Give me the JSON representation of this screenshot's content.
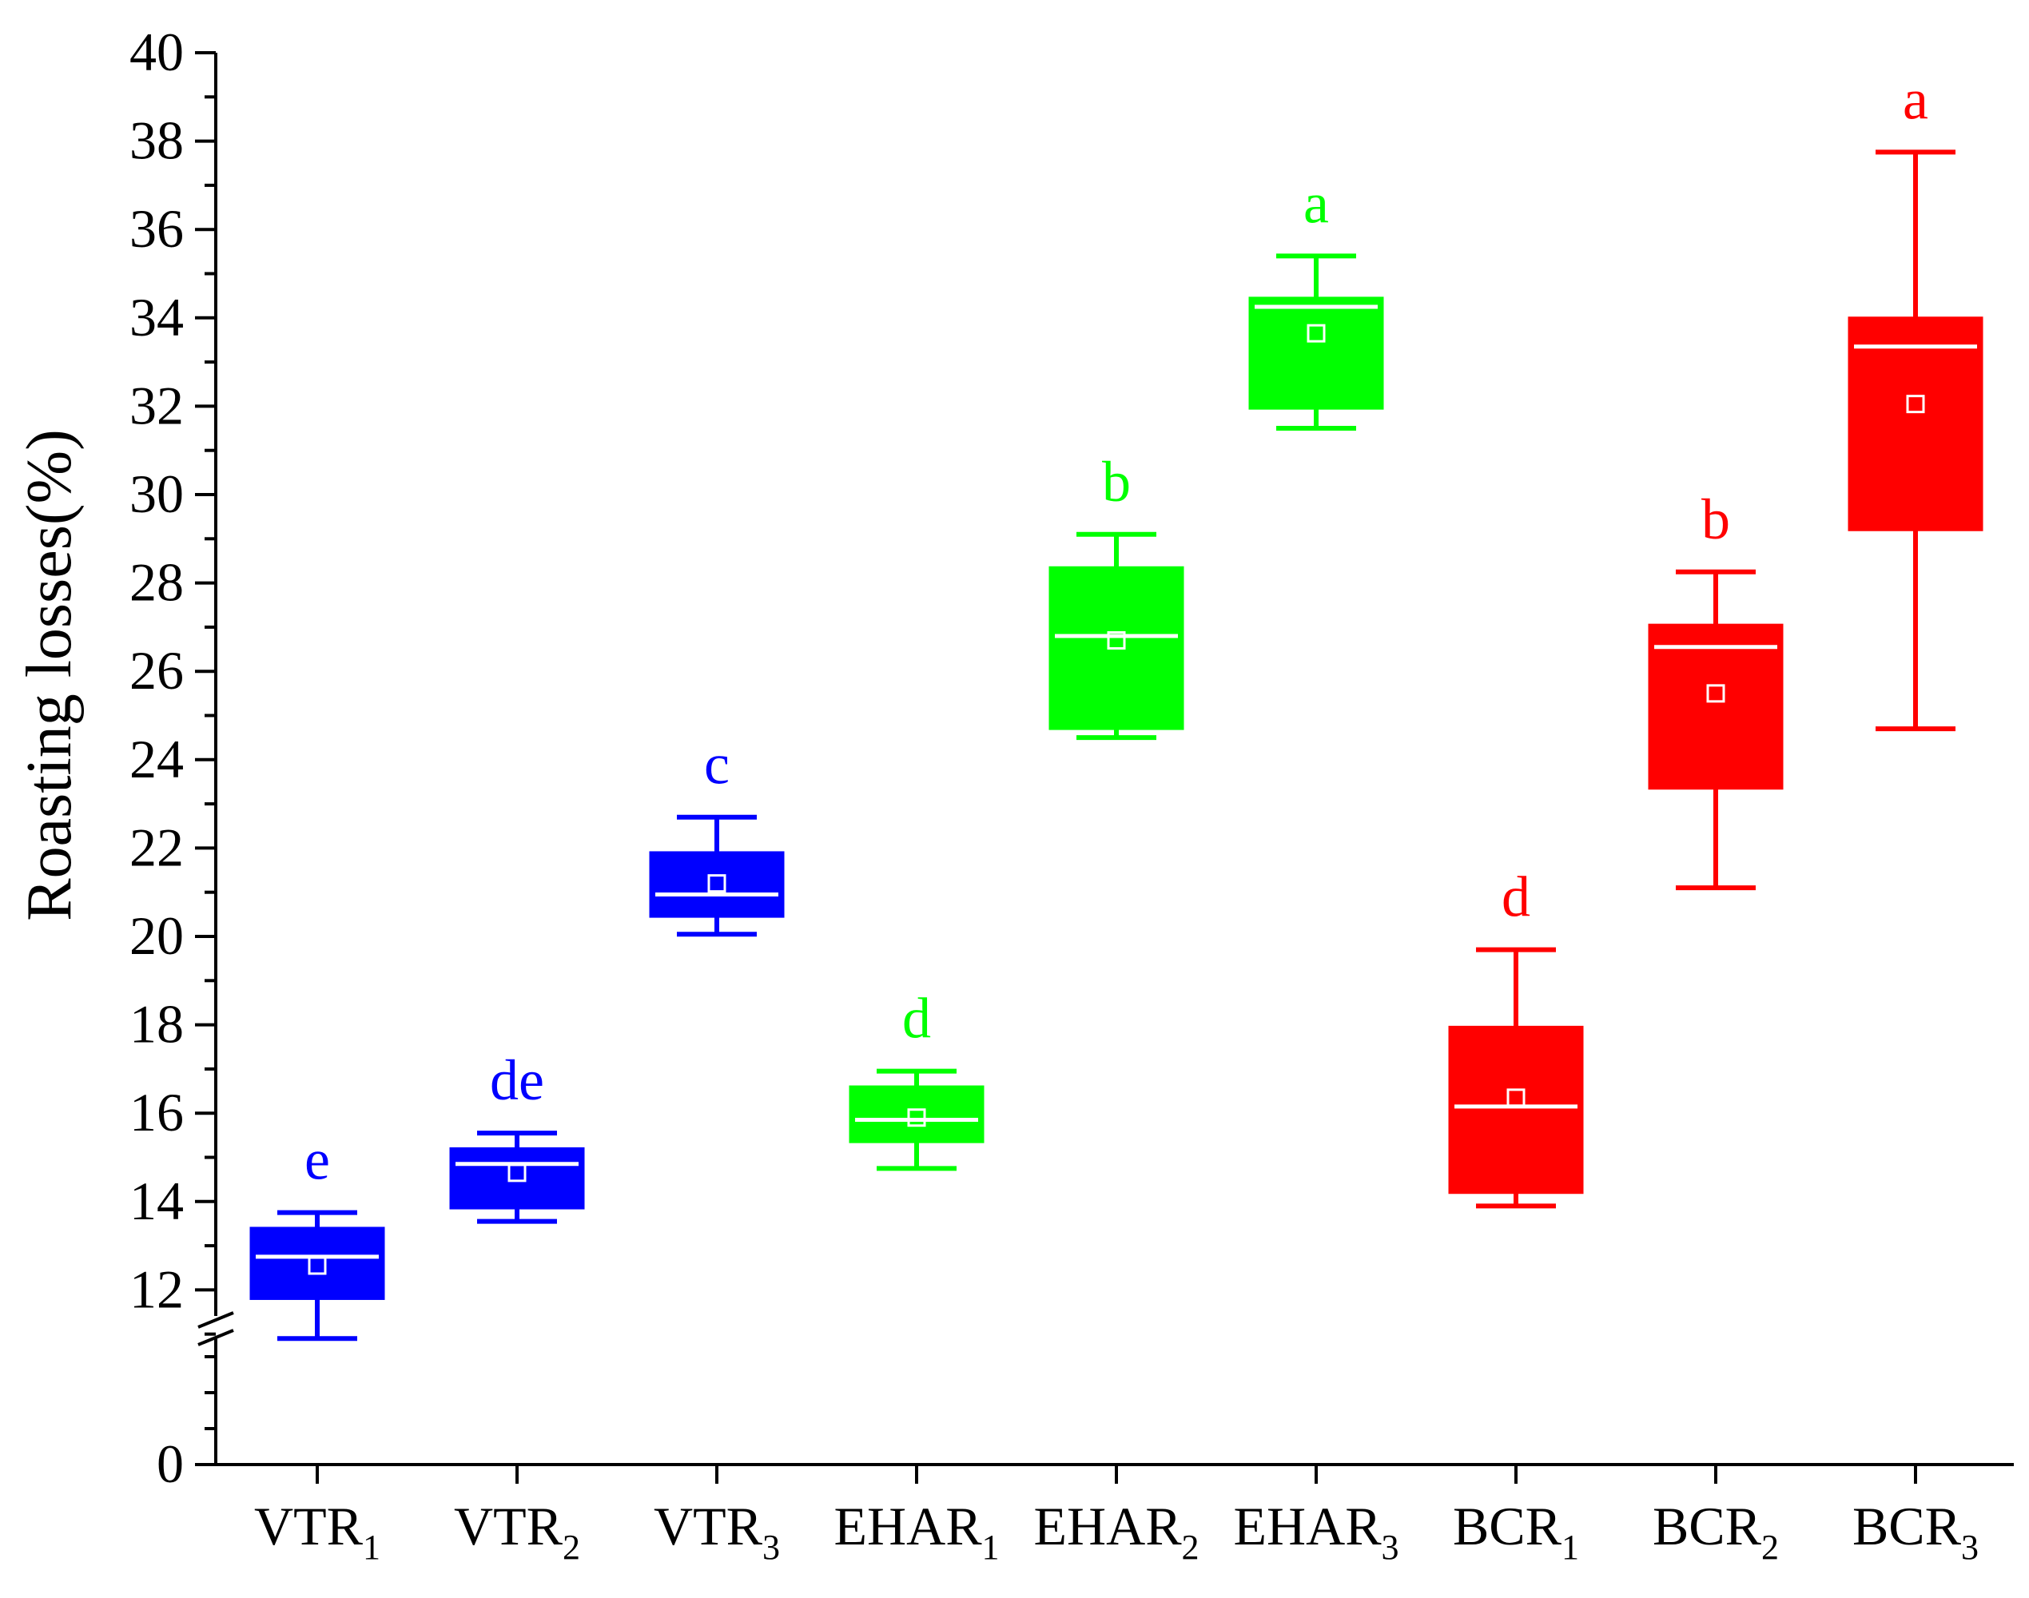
{
  "chart_data": {
    "type": "box",
    "ylabel": "Roasting losses(%)",
    "y_ticks": [
      "0",
      "12",
      "14",
      "16",
      "18",
      "20",
      "22",
      "24",
      "26",
      "28",
      "30",
      "32",
      "34",
      "36",
      "38",
      "40"
    ],
    "y_axis_break": [
      10.3,
      10.9
    ],
    "ylim": [
      0,
      40
    ],
    "colors": {
      "blue": "#0000ff",
      "green": "#00ff00",
      "red": "#ff0000"
    },
    "boxes": [
      {
        "label": "VTR",
        "sub": "1",
        "color": "blue",
        "whisker_low": 10.9,
        "q1": 11.8,
        "median": 12.75,
        "q3": 13.4,
        "whisker_high": 13.75,
        "mean": 12.55,
        "group_letter": "e"
      },
      {
        "label": "VTR",
        "sub": "2",
        "color": "blue",
        "whisker_low": 13.55,
        "q1": 13.85,
        "median": 14.85,
        "q3": 15.2,
        "whisker_high": 15.55,
        "mean": 14.65,
        "group_letter": "de"
      },
      {
        "label": "VTR",
        "sub": "3",
        "color": "blue",
        "whisker_low": 20.05,
        "q1": 20.45,
        "median": 20.95,
        "q3": 21.9,
        "whisker_high": 22.7,
        "mean": 21.2,
        "group_letter": "c"
      },
      {
        "label": "EHAR",
        "sub": "1",
        "color": "green",
        "whisker_low": 14.75,
        "q1": 15.35,
        "median": 15.85,
        "q3": 16.6,
        "whisker_high": 16.95,
        "mean": 15.9,
        "group_letter": "d"
      },
      {
        "label": "EHAR",
        "sub": "2",
        "color": "green",
        "whisker_low": 24.5,
        "q1": 24.7,
        "median": 26.8,
        "q3": 28.35,
        "whisker_high": 29.1,
        "mean": 26.7,
        "group_letter": "b"
      },
      {
        "label": "EHAR",
        "sub": "3",
        "color": "green",
        "whisker_low": 31.5,
        "q1": 31.95,
        "median": 34.25,
        "q3": 34.45,
        "whisker_high": 35.4,
        "mean": 33.65,
        "group_letter": "a"
      },
      {
        "label": "BCR",
        "sub": "1",
        "color": "red",
        "whisker_low": 13.9,
        "q1": 14.2,
        "median": 16.15,
        "q3": 17.95,
        "whisker_high": 19.7,
        "mean": 16.35,
        "group_letter": "d"
      },
      {
        "label": "BCR",
        "sub": "2",
        "color": "red",
        "whisker_low": 21.1,
        "q1": 23.35,
        "median": 26.55,
        "q3": 27.05,
        "whisker_high": 28.25,
        "mean": 25.5,
        "group_letter": "b"
      },
      {
        "label": "BCR",
        "sub": "3",
        "color": "red",
        "whisker_low": 24.7,
        "q1": 29.2,
        "median": 33.35,
        "q3": 34.0,
        "whisker_high": 37.75,
        "mean": 32.05,
        "group_letter": "a"
      }
    ]
  }
}
